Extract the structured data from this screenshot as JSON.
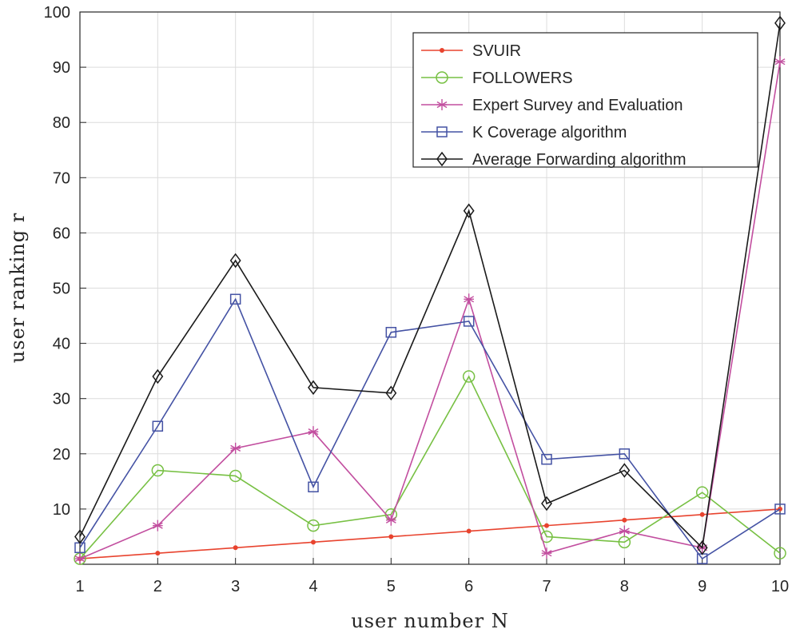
{
  "chart_data": {
    "type": "line",
    "title": "",
    "xlabel": "user number N",
    "ylabel": "user ranking r",
    "x": [
      1,
      2,
      3,
      4,
      5,
      6,
      7,
      8,
      9,
      10
    ],
    "xlim": [
      1,
      10
    ],
    "ylim": [
      0,
      100
    ],
    "xticks": [
      "1",
      "2",
      "3",
      "4",
      "5",
      "6",
      "7",
      "8",
      "9",
      "10"
    ],
    "yticks": [
      "10",
      "20",
      "30",
      "40",
      "50",
      "60",
      "70",
      "80",
      "90",
      "100"
    ],
    "grid": true,
    "legend_position": "top-right",
    "series": [
      {
        "name": "SVUIR",
        "color": "#e8432e",
        "marker": "dot",
        "values": [
          1,
          2,
          3,
          4,
          5,
          6,
          7,
          8,
          9,
          10
        ]
      },
      {
        "name": "FOLLOWERS",
        "color": "#77c043",
        "marker": "circle",
        "values": [
          1,
          17,
          16,
          7,
          9,
          34,
          5,
          4,
          13,
          2
        ]
      },
      {
        "name": "Expert Survey and Evaluation",
        "color": "#c24e9f",
        "marker": "asterisk",
        "values": [
          1,
          7,
          21,
          24,
          8,
          48,
          2,
          6,
          3,
          91
        ]
      },
      {
        "name": "K Coverage algorithm",
        "color": "#4452a4",
        "marker": "square",
        "values": [
          3,
          25,
          48,
          14,
          42,
          44,
          19,
          20,
          1,
          10
        ]
      },
      {
        "name": "Average Forwarding algorithm",
        "color": "#1a1a1a",
        "marker": "diamond",
        "values": [
          5,
          34,
          55,
          32,
          31,
          64,
          11,
          17,
          3,
          98
        ]
      }
    ]
  }
}
